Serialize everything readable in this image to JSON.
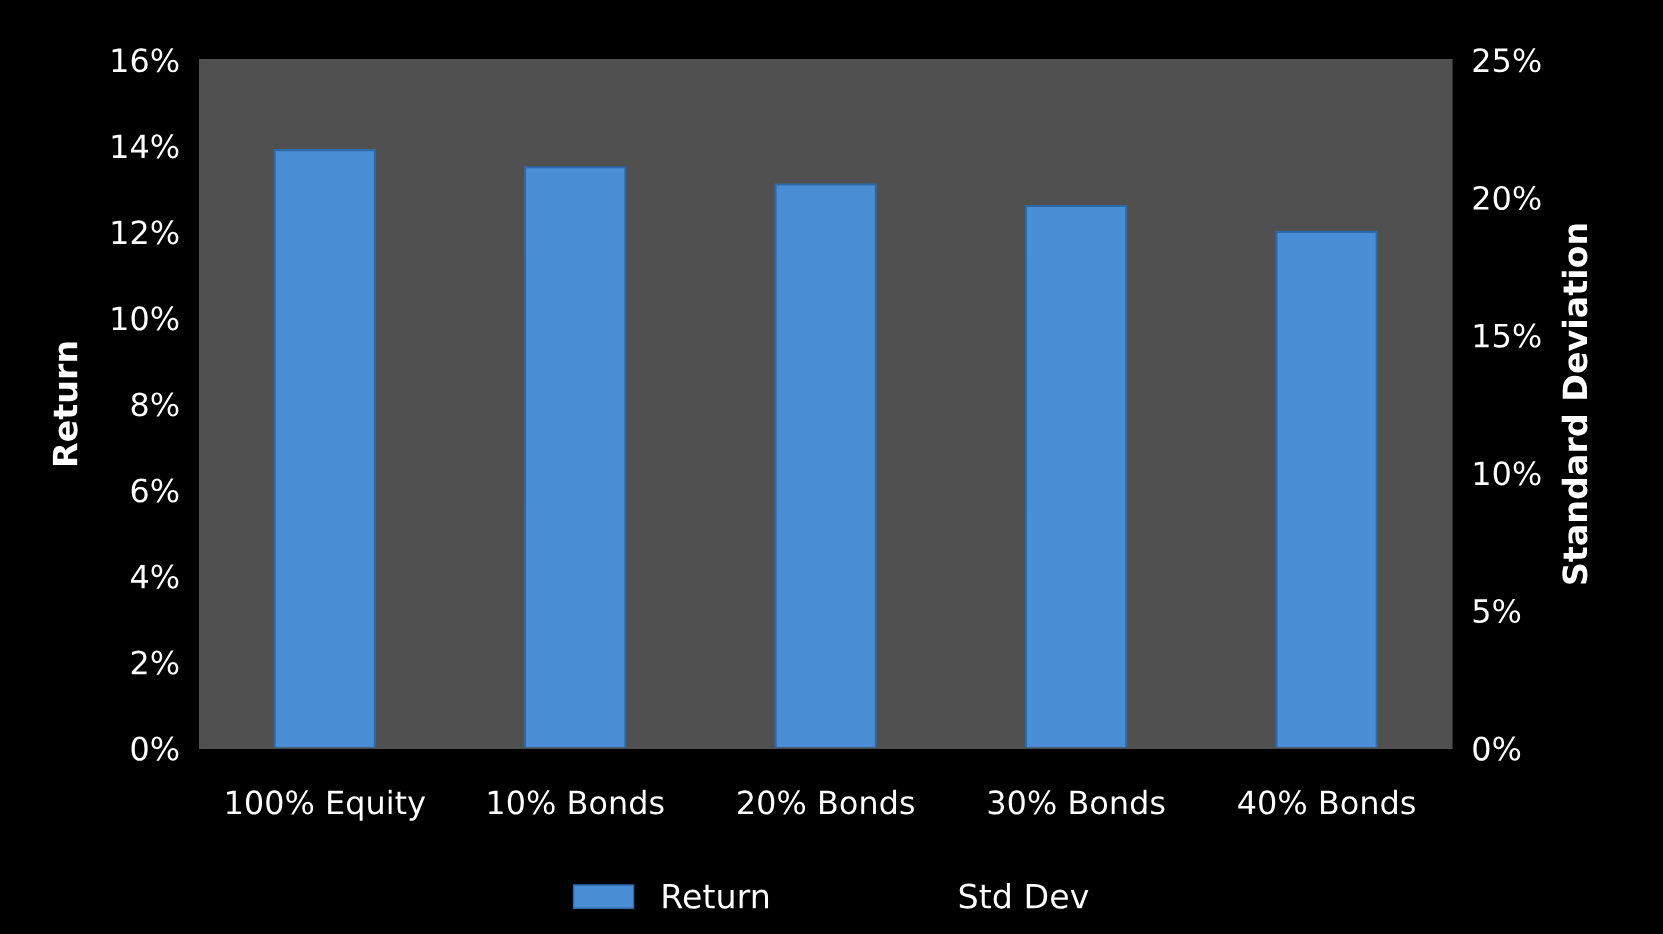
{
  "chart_data": {
    "type": "bar",
    "categories": [
      "100% Equity",
      "10% Bonds",
      "20% Bonds",
      "30% Bonds",
      "40% Bonds"
    ],
    "series": [
      {
        "name": "Return",
        "color": "#4a8fd6",
        "values": [
          0.139,
          0.135,
          0.131,
          0.126,
          0.12
        ]
      },
      {
        "name": "Std Dev",
        "type": "line",
        "values": [
          null,
          null,
          null,
          null,
          null
        ]
      }
    ],
    "ylabel": "Return",
    "y2label": "Standard Deviation",
    "ylim": [
      0,
      0.16
    ],
    "yticks": [
      {
        "value": 0,
        "label": "0%"
      },
      {
        "value": 0.02,
        "label": "2%"
      },
      {
        "value": 0.04,
        "label": "4%"
      },
      {
        "value": 0.06,
        "label": "6%"
      },
      {
        "value": 0.08,
        "label": "8%"
      },
      {
        "value": 0.1,
        "label": "10%"
      },
      {
        "value": 0.12,
        "label": "12%"
      },
      {
        "value": 0.14,
        "label": "14%"
      },
      {
        "value": 0.16,
        "label": "16%"
      }
    ],
    "y2lim": [
      0,
      0.25
    ],
    "y2ticks": [
      {
        "value": 0,
        "label": "0%"
      },
      {
        "value": 0.05,
        "label": "5%"
      },
      {
        "value": 0.1,
        "label": "10%"
      },
      {
        "value": 0.15,
        "label": "15%"
      },
      {
        "value": 0.2,
        "label": "20%"
      },
      {
        "value": 0.25,
        "label": "25%"
      }
    ],
    "legend": "bottom",
    "grid": false
  }
}
